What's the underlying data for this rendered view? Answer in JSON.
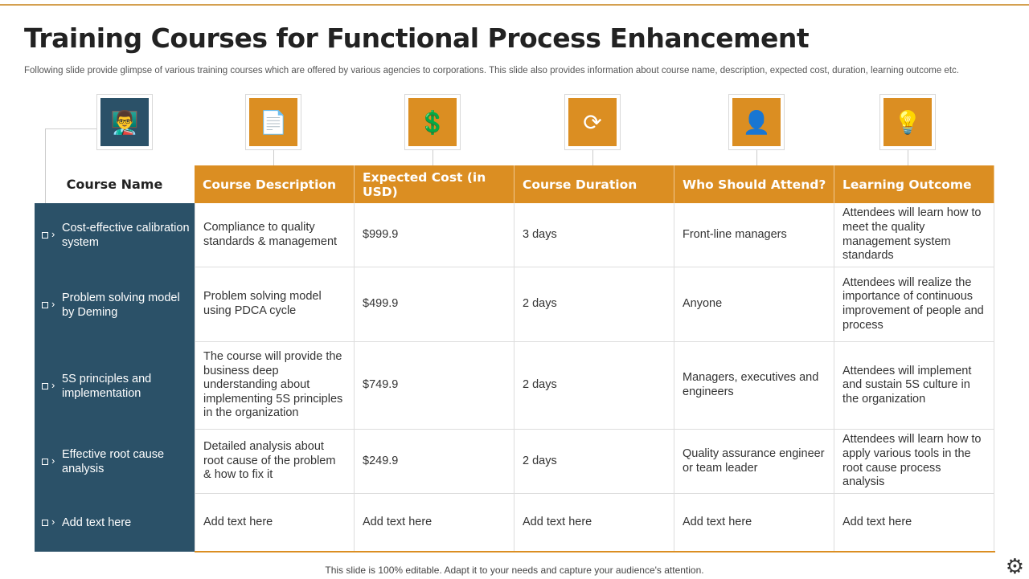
{
  "title": "Training Courses for Functional Process Enhancement",
  "subtitle": "Following slide provide glimpse of various training courses which are offered by various agencies to corporations. This slide also provides information about course name, description, expected cost, duration, learning outcome etc.",
  "colors": {
    "accent": "#DB8E22",
    "dark": "#2B5168"
  },
  "table": {
    "name_header": "Course Name",
    "headers": [
      "Course Description",
      "Expected Cost (in USD)",
      "Course Duration",
      "Who Should Attend?",
      "Learning Outcome"
    ],
    "icons": [
      "presentation-certificate-icon",
      "document-gear-icon",
      "money-hand-icon",
      "clock-cycle-icon",
      "person-icon",
      "idea-hand-icon"
    ],
    "rows": [
      {
        "name": "Cost-effective calibration system",
        "cells": [
          "Compliance to quality standards & management",
          "$999.9",
          "3 days",
          "Front-line managers",
          "Attendees will learn how to meet the quality management system standards"
        ]
      },
      {
        "name": "Problem solving model by Deming",
        "cells": [
          "Problem solving model using PDCA cycle",
          "$499.9",
          "2 days",
          "Anyone",
          "Attendees will realize the importance of continuous improvement of people and process"
        ]
      },
      {
        "name": "5S principles and implementation",
        "cells": [
          "The course will provide the business deep understanding about implementing 5S principles in the organization",
          "$749.9",
          "2 days",
          "Managers, executives and engineers",
          "Attendees will implement and sustain 5S culture in the organization"
        ]
      },
      {
        "name": "Effective root cause analysis",
        "cells": [
          "Detailed analysis about root cause of the problem & how to fix it",
          "$249.9",
          "2 days",
          "Quality assurance engineer or team leader",
          "Attendees will learn how to apply various tools in the root cause process analysis"
        ]
      },
      {
        "name": "Add text here",
        "cells": [
          "Add text here",
          "Add text here",
          "Add text here",
          "Add text here",
          "Add text here"
        ]
      }
    ]
  },
  "footer": "This slide is 100% editable. Adapt it to your needs and capture your audience's attention."
}
